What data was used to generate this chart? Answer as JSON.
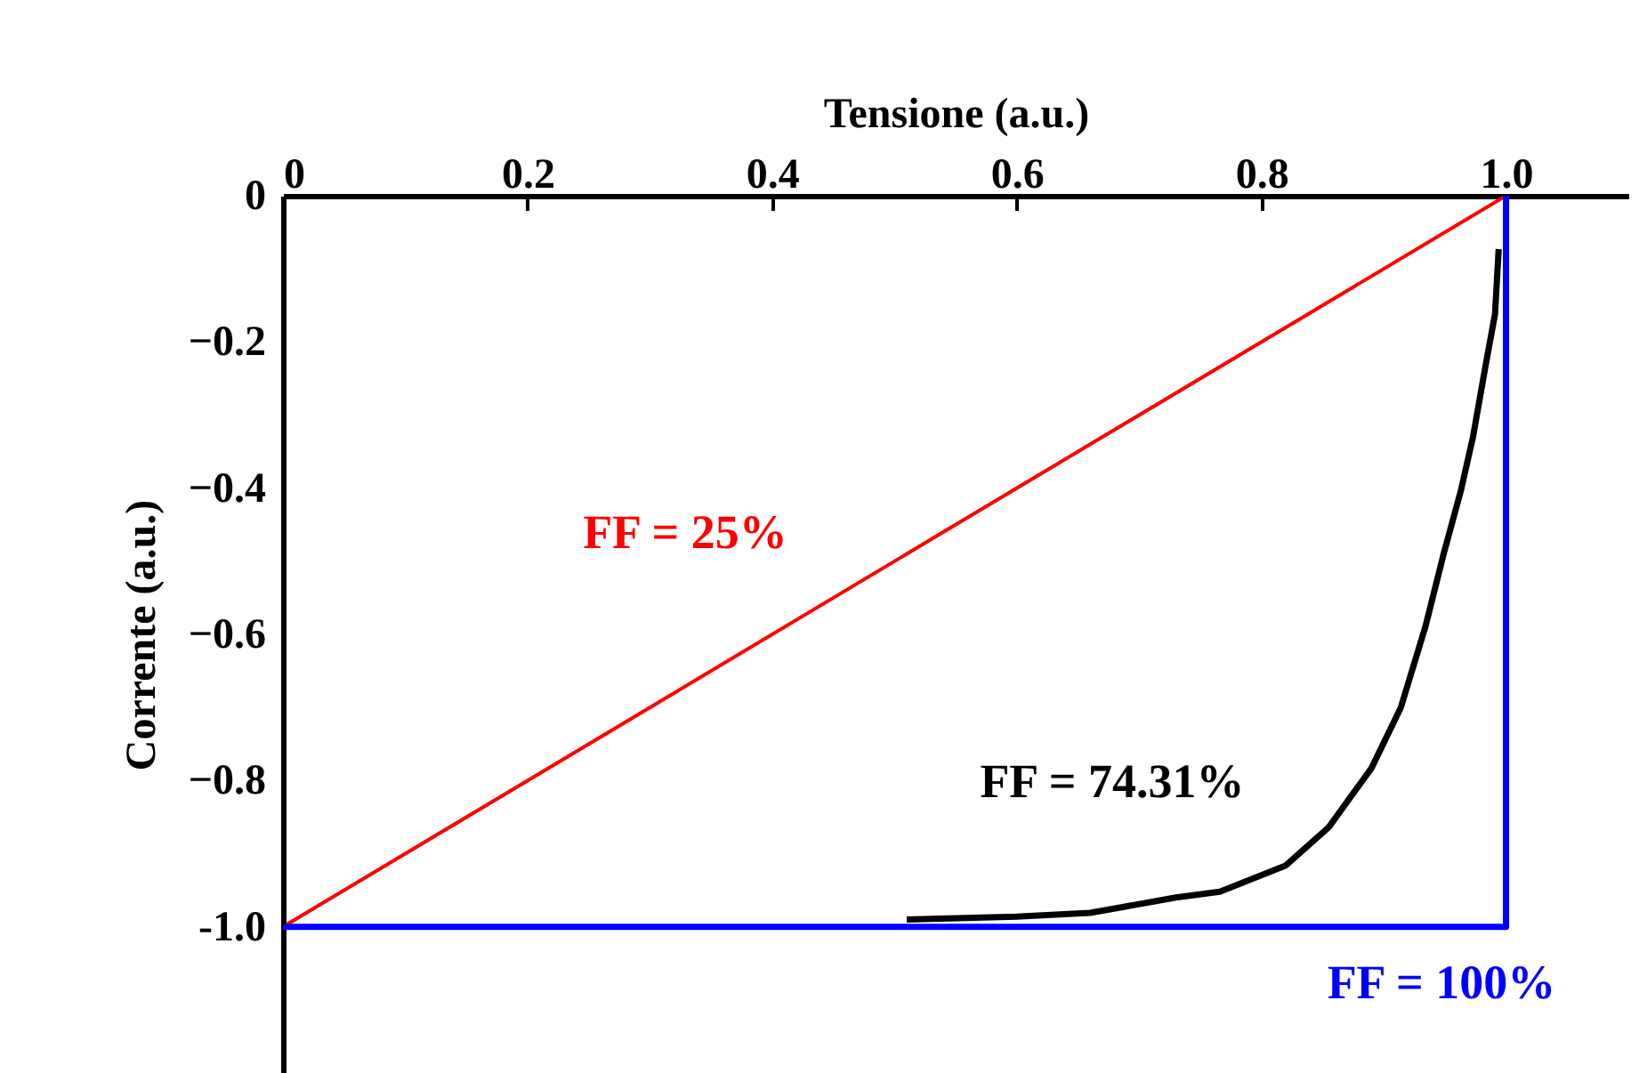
{
  "chart_data": {
    "type": "line",
    "xlabel": "Tensione (a.u.)",
    "ylabel": "Corrente (a.u.)",
    "xlim": [
      0,
      1.1
    ],
    "ylim": [
      -1.2,
      0
    ],
    "xticks": [
      0,
      0.2,
      0.4,
      0.6,
      0.8,
      {
        "value": 1,
        "label": "1.0"
      }
    ],
    "yticks": [
      0,
      -0.2,
      -0.4,
      -0.6,
      -0.8,
      {
        "value": -1,
        "label": "-1.0"
      }
    ],
    "grid": false,
    "marker": "none",
    "line_style": "solid",
    "series": [
      {
        "color": "#ff0000",
        "x": [
          0,
          1
        ],
        "values": [
          -1,
          0
        ]
      },
      {
        "color": "#000000",
        "x": [
          0.51,
          0.6,
          0.66,
          0.73,
          0.766,
          0.82,
          0.855,
          0.89,
          0.914,
          0.934,
          0.949,
          0.963,
          0.973,
          0.983,
          0.991,
          0.994
        ],
        "values": [
          -0.99,
          -0.986,
          -0.981,
          -0.96,
          -0.952,
          -0.916,
          -0.864,
          -0.783,
          -0.7,
          -0.59,
          -0.49,
          -0.404,
          -0.33,
          -0.235,
          -0.162,
          -0.073
        ]
      },
      {
        "color": "#0000ff",
        "x": [
          0,
          1,
          1
        ],
        "values": [
          -1,
          -1,
          0
        ]
      }
    ],
    "annotations": [
      "FF = 25%",
      "FF = 74.31%",
      "FF = 100%"
    ]
  }
}
